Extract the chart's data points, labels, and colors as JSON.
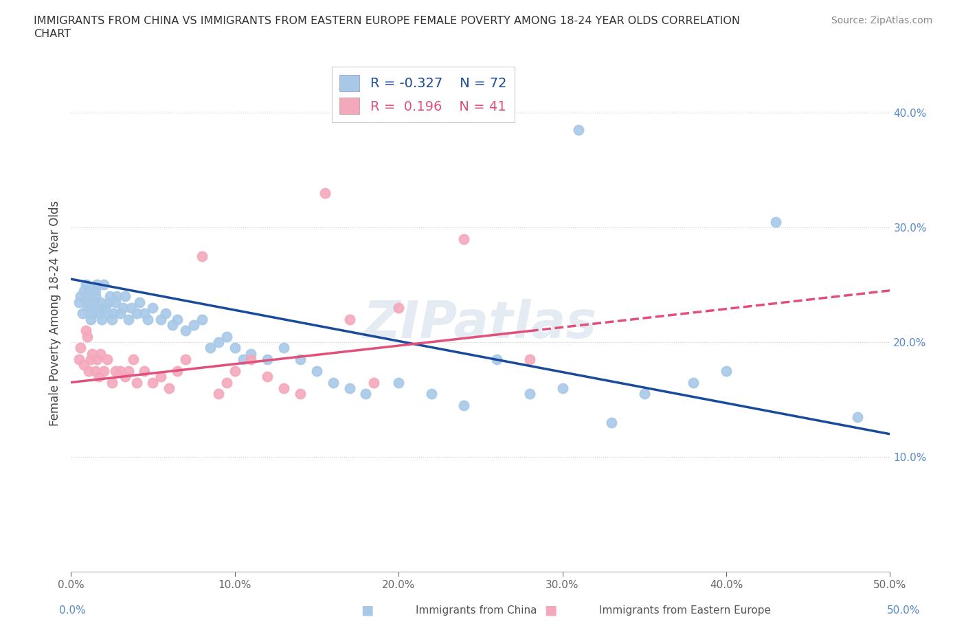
{
  "title_line1": "IMMIGRANTS FROM CHINA VS IMMIGRANTS FROM EASTERN EUROPE FEMALE POVERTY AMONG 18-24 YEAR OLDS CORRELATION",
  "title_line2": "CHART",
  "source": "Source: ZipAtlas.com",
  "xlabel_china": "Immigrants from China",
  "xlabel_eastern": "Immigrants from Eastern Europe",
  "ylabel": "Female Poverty Among 18-24 Year Olds",
  "r_china": -0.327,
  "n_china": 72,
  "r_eastern": 0.196,
  "n_eastern": 41,
  "xlim": [
    0.0,
    0.5
  ],
  "ylim": [
    0.0,
    0.45
  ],
  "yticks": [
    0.1,
    0.2,
    0.3,
    0.4
  ],
  "xticks": [
    0.0,
    0.1,
    0.2,
    0.3,
    0.4,
    0.5
  ],
  "color_china": "#a8c8e8",
  "color_eastern": "#f4a8bc",
  "line_color_china": "#1a4a9a",
  "line_color_eastern": "#e0507a",
  "background": "#ffffff",
  "watermark": "ZIPatlas",
  "china_x": [
    0.005,
    0.006,
    0.007,
    0.008,
    0.009,
    0.01,
    0.01,
    0.01,
    0.011,
    0.012,
    0.013,
    0.013,
    0.014,
    0.015,
    0.015,
    0.016,
    0.017,
    0.018,
    0.018,
    0.019,
    0.02,
    0.021,
    0.022,
    0.023,
    0.024,
    0.025,
    0.026,
    0.027,
    0.028,
    0.03,
    0.032,
    0.033,
    0.035,
    0.037,
    0.04,
    0.042,
    0.045,
    0.047,
    0.05,
    0.055,
    0.058,
    0.062,
    0.065,
    0.07,
    0.075,
    0.08,
    0.085,
    0.09,
    0.095,
    0.1,
    0.105,
    0.11,
    0.12,
    0.13,
    0.14,
    0.15,
    0.16,
    0.17,
    0.18,
    0.2,
    0.22,
    0.24,
    0.26,
    0.28,
    0.3,
    0.31,
    0.33,
    0.35,
    0.38,
    0.4,
    0.43,
    0.48
  ],
  "china_y": [
    0.235,
    0.24,
    0.225,
    0.245,
    0.25,
    0.23,
    0.235,
    0.24,
    0.245,
    0.22,
    0.225,
    0.23,
    0.235,
    0.24,
    0.245,
    0.25,
    0.225,
    0.23,
    0.235,
    0.22,
    0.25,
    0.23,
    0.225,
    0.235,
    0.24,
    0.22,
    0.225,
    0.235,
    0.24,
    0.225,
    0.23,
    0.24,
    0.22,
    0.23,
    0.225,
    0.235,
    0.225,
    0.22,
    0.23,
    0.22,
    0.225,
    0.215,
    0.22,
    0.21,
    0.215,
    0.22,
    0.195,
    0.2,
    0.205,
    0.195,
    0.185,
    0.19,
    0.185,
    0.195,
    0.185,
    0.175,
    0.165,
    0.16,
    0.155,
    0.165,
    0.155,
    0.145,
    0.185,
    0.155,
    0.16,
    0.385,
    0.13,
    0.155,
    0.165,
    0.175,
    0.305,
    0.135
  ],
  "eastern_x": [
    0.005,
    0.006,
    0.008,
    0.009,
    0.01,
    0.011,
    0.012,
    0.013,
    0.015,
    0.016,
    0.017,
    0.018,
    0.02,
    0.022,
    0.025,
    0.027,
    0.03,
    0.033,
    0.035,
    0.038,
    0.04,
    0.045,
    0.05,
    0.055,
    0.06,
    0.065,
    0.07,
    0.08,
    0.09,
    0.095,
    0.1,
    0.11,
    0.12,
    0.13,
    0.14,
    0.155,
    0.17,
    0.185,
    0.2,
    0.24,
    0.28
  ],
  "eastern_y": [
    0.185,
    0.195,
    0.18,
    0.21,
    0.205,
    0.175,
    0.185,
    0.19,
    0.175,
    0.185,
    0.17,
    0.19,
    0.175,
    0.185,
    0.165,
    0.175,
    0.175,
    0.17,
    0.175,
    0.185,
    0.165,
    0.175,
    0.165,
    0.17,
    0.16,
    0.175,
    0.185,
    0.275,
    0.155,
    0.165,
    0.175,
    0.185,
    0.17,
    0.16,
    0.155,
    0.33,
    0.22,
    0.165,
    0.23,
    0.29,
    0.185
  ]
}
